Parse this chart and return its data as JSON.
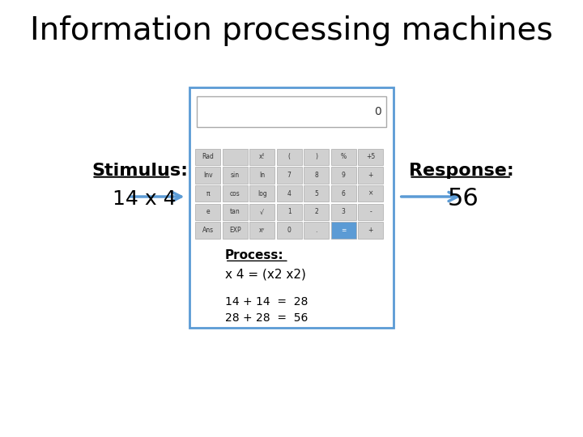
{
  "title": "Information processing machines",
  "title_fontsize": 28,
  "stimulus_label": "Stimulus:",
  "stimulus_value": "14 x 4",
  "response_label": "Response:",
  "response_value": "56",
  "process_label": "Process:",
  "process_line1": "x 4 = (x2 x2)",
  "process_line2": "14 + 14  =  28",
  "process_line3": "28 + 28  =  56",
  "bg_color": "#ffffff",
  "text_color": "#000000",
  "arrow_color": "#5b9bd5",
  "calc_border": "#5b9bd5",
  "btn_colors_rows": [
    [
      "#d0d0d0",
      "#d0d0d0",
      "#d0d0d0",
      "#d0d0d0",
      "#d0d0d0",
      "#d0d0d0",
      "#d0d0d0"
    ],
    [
      "#d0d0d0",
      "#d0d0d0",
      "#d0d0d0",
      "#d0d0d0",
      "#d0d0d0",
      "#d0d0d0",
      "#d0d0d0"
    ],
    [
      "#d0d0d0",
      "#d0d0d0",
      "#d0d0d0",
      "#d0d0d0",
      "#d0d0d0",
      "#d0d0d0",
      "#d0d0d0"
    ],
    [
      "#d0d0d0",
      "#d0d0d0",
      "#d0d0d0",
      "#d0d0d0",
      "#d0d0d0",
      "#d0d0d0",
      "#d0d0d0"
    ],
    [
      "#d0d0d0",
      "#d0d0d0",
      "#d0d0d0",
      "#d0d0d0",
      "#d0d0d0",
      "#5b9bd5",
      "#d0d0d0"
    ]
  ],
  "btn_labels_rows": [
    [
      "Rad",
      "",
      "x!",
      "(",
      ")",
      "%",
      "+5"
    ],
    [
      "Inv",
      "sin",
      "ln",
      "7",
      "8",
      "9",
      "+"
    ],
    [
      "π",
      "cos",
      "log",
      "4",
      "5",
      "6",
      "×"
    ],
    [
      "e",
      "tan",
      "√",
      "1",
      "2",
      "3",
      "-"
    ],
    [
      "Ans",
      "EXP",
      "xʸ",
      "0",
      ".",
      "=",
      "+"
    ]
  ]
}
